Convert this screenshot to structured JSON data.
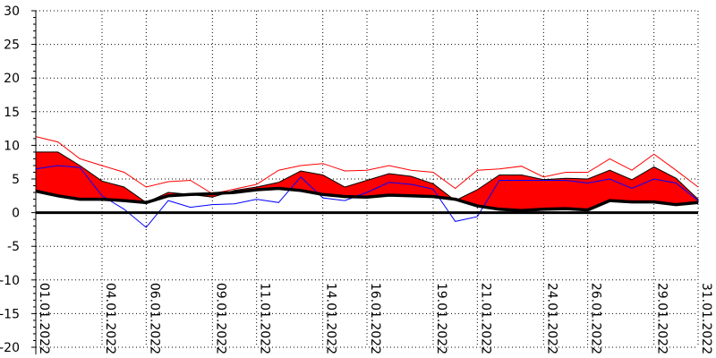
{
  "chart_data": {
    "type": "area",
    "title": "",
    "xlabel": "",
    "ylabel": "",
    "ylim": [
      -20,
      30
    ],
    "xlim": [
      "01.01.2022",
      "31.01.2022"
    ],
    "yticks": [
      30,
      25,
      20,
      15,
      10,
      5,
      0,
      -5,
      -10,
      -15,
      -20
    ],
    "xticks": [
      "01.01.2022",
      "04.01.2022",
      "06.01.2022",
      "09.01.2022",
      "11.01.2022",
      "14.01.2022",
      "16.01.2022",
      "19.01.2022",
      "21.01.2022",
      "24.01.2022",
      "26.01.2022",
      "29.01.2022",
      "31.01.2022"
    ],
    "grid": true,
    "colors": {
      "band": "#ff0000",
      "upper_line": "#ff0000",
      "blue_line": "#0000ff",
      "base_line": "#000000",
      "zero_line": "#000000"
    },
    "x": [
      "01.01.2022",
      "02.01.2022",
      "03.01.2022",
      "04.01.2022",
      "05.01.2022",
      "06.01.2022",
      "07.01.2022",
      "08.01.2022",
      "09.01.2022",
      "10.01.2022",
      "11.01.2022",
      "12.01.2022",
      "13.01.2022",
      "14.01.2022",
      "15.01.2022",
      "16.01.2022",
      "17.01.2022",
      "18.01.2022",
      "19.01.2022",
      "20.01.2022",
      "21.01.2022",
      "22.01.2022",
      "23.01.2022",
      "24.01.2022",
      "25.01.2022",
      "26.01.2022",
      "27.01.2022",
      "28.01.2022",
      "29.01.2022",
      "30.01.2022",
      "31.01.2022"
    ],
    "series": [
      {
        "role": "band_lower",
        "color": "#000000",
        "values": [
          3.2,
          2.5,
          2.0,
          2.0,
          1.8,
          1.5,
          2.5,
          2.7,
          2.8,
          3.0,
          3.4,
          3.6,
          3.3,
          2.7,
          2.4,
          2.3,
          2.6,
          2.5,
          2.4,
          2.0,
          1.0,
          0.5,
          0.3,
          0.5,
          0.6,
          0.4,
          1.8,
          1.6,
          1.6,
          1.2,
          1.5
        ]
      },
      {
        "role": "band_upper",
        "color": "#ff0000",
        "values": [
          9.0,
          9.0,
          7.0,
          4.7,
          3.8,
          1.5,
          3.0,
          2.7,
          2.3,
          3.3,
          3.8,
          4.5,
          6.2,
          5.6,
          3.8,
          4.8,
          5.8,
          5.4,
          4.3,
          1.8,
          3.4,
          5.6,
          5.6,
          4.9,
          5.1,
          5.0,
          6.3,
          4.9,
          6.8,
          5.1,
          2.0
        ]
      },
      {
        "role": "line",
        "color": "#ff0000",
        "values": [
          11.3,
          10.5,
          8.0,
          7.0,
          6.0,
          3.8,
          4.6,
          4.8,
          2.8,
          3.5,
          4.2,
          6.3,
          7.0,
          7.3,
          6.2,
          6.3,
          7.0,
          6.3,
          6.0,
          3.6,
          6.3,
          6.5,
          6.9,
          5.3,
          6.0,
          6.0,
          8.0,
          6.3,
          8.7,
          6.3,
          3.8
        ]
      },
      {
        "role": "line",
        "color": "#0000ff",
        "values": [
          6.5,
          7.0,
          6.7,
          2.5,
          0.5,
          -2.2,
          1.8,
          0.8,
          1.2,
          1.3,
          2.0,
          1.5,
          5.3,
          2.2,
          1.8,
          3.0,
          4.5,
          4.2,
          3.5,
          -1.3,
          -0.6,
          4.8,
          4.8,
          4.8,
          4.8,
          4.4,
          5.0,
          3.6,
          5.0,
          4.4,
          1.8
        ]
      }
    ]
  }
}
